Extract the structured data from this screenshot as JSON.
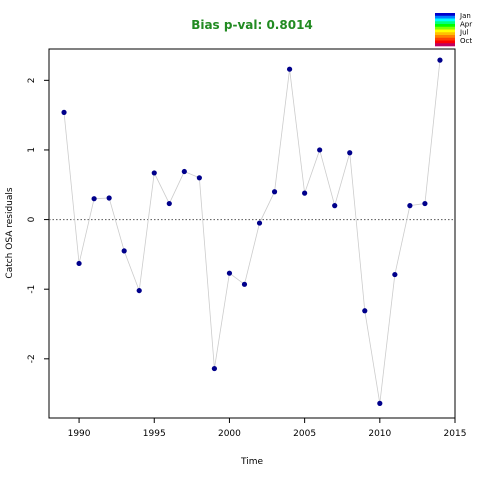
{
  "chart_data": {
    "type": "scatter",
    "title": "Bias p-val: 0.8014",
    "title_color": "#228B22",
    "xlabel": "Time",
    "ylabel": "Catch OSA residuals",
    "xlim": [
      1988,
      2015
    ],
    "ylim": [
      -2.85,
      2.45
    ],
    "x_ticks": [
      1990,
      1995,
      2000,
      2005,
      2010,
      2015
    ],
    "y_ticks": [
      -2,
      -1,
      0,
      1,
      2
    ],
    "reference_line": {
      "y": 0,
      "style": "dotted",
      "color": "#555555"
    },
    "connect_line_color": "#cccccc",
    "point_color": "#00008B",
    "series": [
      {
        "x": [
          1989,
          1990,
          1991,
          1992,
          1993,
          1994,
          1995,
          1996,
          1997,
          1998,
          1999,
          2000,
          2001,
          2002,
          2003,
          2004,
          2005,
          2006,
          2007,
          2008,
          2009,
          2010,
          2011,
          2012,
          2013,
          2014
        ],
        "y": [
          1.54,
          -0.63,
          0.3,
          0.31,
          -0.45,
          -1.02,
          0.67,
          0.23,
          0.69,
          0.6,
          -2.14,
          -0.77,
          -0.93,
          -0.05,
          0.4,
          2.16,
          0.38,
          1.0,
          0.2,
          0.96,
          -1.31,
          -2.64,
          -0.79,
          0.2,
          0.23,
          2.29
        ]
      }
    ],
    "legend": {
      "placement": "top-right",
      "labels": [
        "Jan",
        "Apr",
        "Jul",
        "Oct"
      ],
      "colors": [
        "#0000CD",
        "#0080FF",
        "#00FFFF",
        "#00FF80",
        "#00FF00",
        "#80FF00",
        "#FFFF00",
        "#FFC000",
        "#FF8000",
        "#FF4000",
        "#FF0000",
        "#C00060"
      ]
    }
  }
}
